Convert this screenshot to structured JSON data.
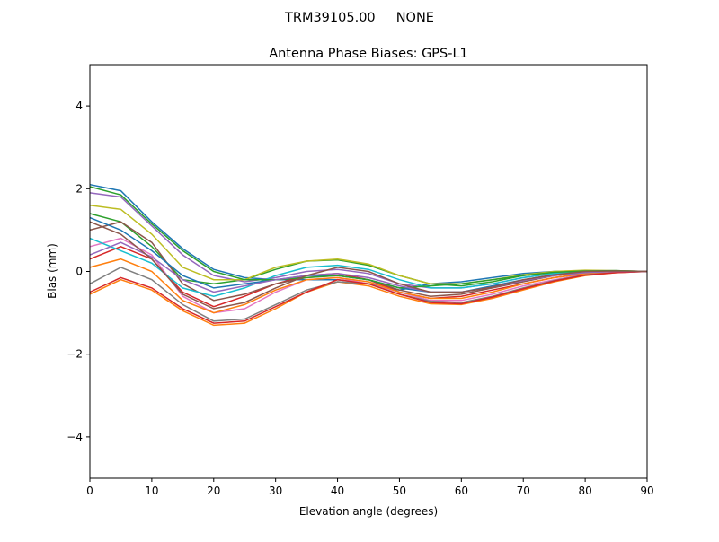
{
  "chart_data": {
    "type": "line",
    "suptitle": "TRM39105.00     NONE",
    "title": "Antenna Phase Biases: GPS-L1",
    "xlabel": "Elevation angle (degrees)",
    "ylabel": "Bias (mm)",
    "xlim": [
      0,
      90
    ],
    "ylim": [
      -5,
      5
    ],
    "xticks": [
      0,
      10,
      20,
      30,
      40,
      50,
      60,
      70,
      80,
      90
    ],
    "yticks": [
      -4,
      -2,
      0,
      2,
      4
    ],
    "ytick_labels": [
      "−4",
      "−2",
      "0",
      "2",
      "4"
    ],
    "grid": false,
    "x": [
      0,
      5,
      10,
      15,
      20,
      25,
      30,
      35,
      40,
      45,
      50,
      55,
      60,
      65,
      70,
      75,
      80,
      85,
      90
    ],
    "colors": [
      "#1f77b4",
      "#ff7f0e",
      "#2ca02c",
      "#d62728",
      "#9467bd",
      "#8c564b",
      "#e377c2",
      "#7f7f7f",
      "#bcbd22",
      "#17becf"
    ],
    "series": [
      {
        "values": [
          2.1,
          1.95,
          1.2,
          0.55,
          0.05,
          -0.15,
          -0.2,
          -0.2,
          -0.2,
          -0.3,
          -0.45,
          -0.3,
          -0.25,
          -0.15,
          -0.05,
          0,
          0.02,
          0.02,
          0
        ]
      },
      {
        "values": [
          -0.55,
          -0.2,
          -0.45,
          -0.95,
          -1.3,
          -1.25,
          -0.9,
          -0.5,
          -0.25,
          -0.35,
          -0.6,
          -0.78,
          -0.8,
          -0.65,
          -0.45,
          -0.25,
          -0.1,
          -0.03,
          0
        ]
      },
      {
        "values": [
          1.4,
          1.2,
          0.6,
          -0.2,
          -0.3,
          -0.2,
          0.05,
          0.25,
          0.28,
          0.15,
          -0.1,
          -0.3,
          -0.35,
          -0.25,
          -0.1,
          -0.02,
          0.02,
          0.01,
          0
        ]
      },
      {
        "values": [
          0.3,
          0.6,
          0.3,
          -0.5,
          -0.85,
          -0.6,
          -0.3,
          -0.1,
          -0.05,
          -0.2,
          -0.5,
          -0.65,
          -0.6,
          -0.45,
          -0.3,
          -0.15,
          -0.05,
          0,
          0
        ]
      },
      {
        "values": [
          1.9,
          1.8,
          1.1,
          0.4,
          -0.1,
          -0.25,
          -0.15,
          0.0,
          0.05,
          -0.05,
          -0.3,
          -0.4,
          -0.4,
          -0.3,
          -0.15,
          -0.05,
          0,
          0.01,
          0
        ]
      },
      {
        "values": [
          1.0,
          1.2,
          0.7,
          -0.3,
          -0.7,
          -0.55,
          -0.3,
          -0.15,
          -0.1,
          -0.2,
          -0.45,
          -0.6,
          -0.55,
          -0.4,
          -0.25,
          -0.1,
          -0.03,
          0,
          0
        ]
      },
      {
        "values": [
          0.6,
          0.8,
          0.4,
          -0.6,
          -1.0,
          -0.9,
          -0.5,
          -0.2,
          -0.15,
          -0.3,
          -0.5,
          -0.7,
          -0.7,
          -0.55,
          -0.35,
          -0.2,
          -0.07,
          -0.01,
          0
        ]
      },
      {
        "values": [
          -0.3,
          0.1,
          -0.2,
          -0.8,
          -1.2,
          -1.15,
          -0.8,
          -0.45,
          -0.25,
          -0.3,
          -0.55,
          -0.72,
          -0.75,
          -0.6,
          -0.4,
          -0.22,
          -0.08,
          -0.02,
          0
        ]
      },
      {
        "values": [
          1.6,
          1.5,
          0.9,
          0.1,
          -0.2,
          -0.2,
          0.1,
          0.25,
          0.3,
          0.18,
          -0.1,
          -0.3,
          -0.3,
          -0.2,
          -0.08,
          0,
          0.03,
          0.02,
          0
        ]
      },
      {
        "values": [
          0.8,
          0.5,
          0.2,
          -0.4,
          -0.6,
          -0.4,
          -0.1,
          0.1,
          0.15,
          0.05,
          -0.2,
          -0.4,
          -0.4,
          -0.3,
          -0.15,
          -0.05,
          0,
          0.01,
          0
        ]
      },
      {
        "values": [
          1.3,
          1.0,
          0.5,
          -0.1,
          -0.4,
          -0.3,
          -0.2,
          -0.1,
          -0.1,
          -0.2,
          -0.4,
          -0.5,
          -0.5,
          -0.35,
          -0.2,
          -0.08,
          -0.02,
          0,
          0
        ]
      },
      {
        "values": [
          0.1,
          0.3,
          0.0,
          -0.7,
          -1.0,
          -0.8,
          -0.45,
          -0.2,
          -0.15,
          -0.25,
          -0.5,
          -0.65,
          -0.65,
          -0.5,
          -0.3,
          -0.15,
          -0.05,
          0,
          0
        ]
      },
      {
        "values": [
          2.05,
          1.85,
          1.15,
          0.5,
          0.0,
          -0.2,
          -0.2,
          -0.15,
          -0.1,
          -0.2,
          -0.4,
          -0.35,
          -0.3,
          -0.2,
          -0.1,
          -0.02,
          0.01,
          0.02,
          0
        ]
      },
      {
        "values": [
          -0.5,
          -0.15,
          -0.4,
          -0.9,
          -1.25,
          -1.2,
          -0.85,
          -0.5,
          -0.2,
          -0.3,
          -0.55,
          -0.75,
          -0.78,
          -0.62,
          -0.42,
          -0.23,
          -0.09,
          -0.03,
          0
        ]
      },
      {
        "values": [
          0.4,
          0.7,
          0.35,
          -0.2,
          -0.5,
          -0.35,
          -0.2,
          -0.1,
          -0.05,
          -0.15,
          -0.35,
          -0.5,
          -0.5,
          -0.38,
          -0.22,
          -0.1,
          -0.03,
          0,
          0
        ]
      },
      {
        "values": [
          1.2,
          0.9,
          0.3,
          -0.55,
          -0.9,
          -0.75,
          -0.4,
          -0.1,
          0.1,
          0.0,
          -0.3,
          -0.5,
          -0.5,
          -0.38,
          -0.2,
          -0.08,
          0,
          0.01,
          0
        ]
      }
    ]
  }
}
